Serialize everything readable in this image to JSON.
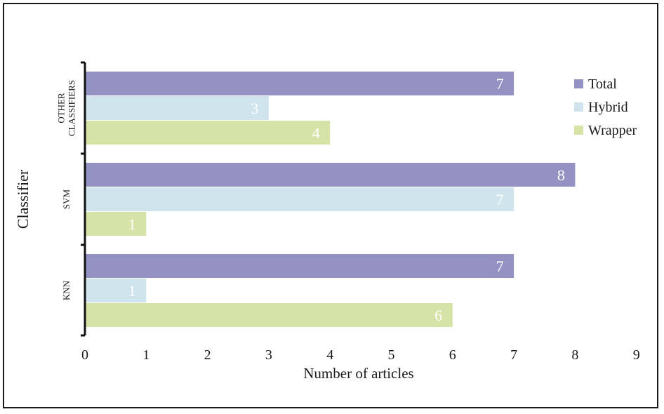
{
  "chart_data": {
    "type": "bar",
    "orientation": "horizontal",
    "categories": [
      "OTHER CLASSIFIERS",
      "SVM",
      "KNN"
    ],
    "series": [
      {
        "name": "Total",
        "color": "#9392c2",
        "values": [
          7,
          8,
          7
        ]
      },
      {
        "name": "Hybrid",
        "color": "#cfe4ec",
        "values": [
          3,
          7,
          1
        ]
      },
      {
        "name": "Wrapper",
        "color": "#d5e3a6",
        "values": [
          4,
          1,
          6
        ]
      }
    ],
    "xlabel": "Number of articles",
    "ylabel": "Classifier",
    "xlim": [
      0,
      9
    ],
    "xticks": [
      "0",
      "1",
      "2",
      "3",
      "4",
      "5",
      "6",
      "7",
      "8",
      "9"
    ],
    "grid": false,
    "legend_position": "top-right",
    "data_labels": true,
    "data_label_color": "#ffffff"
  }
}
